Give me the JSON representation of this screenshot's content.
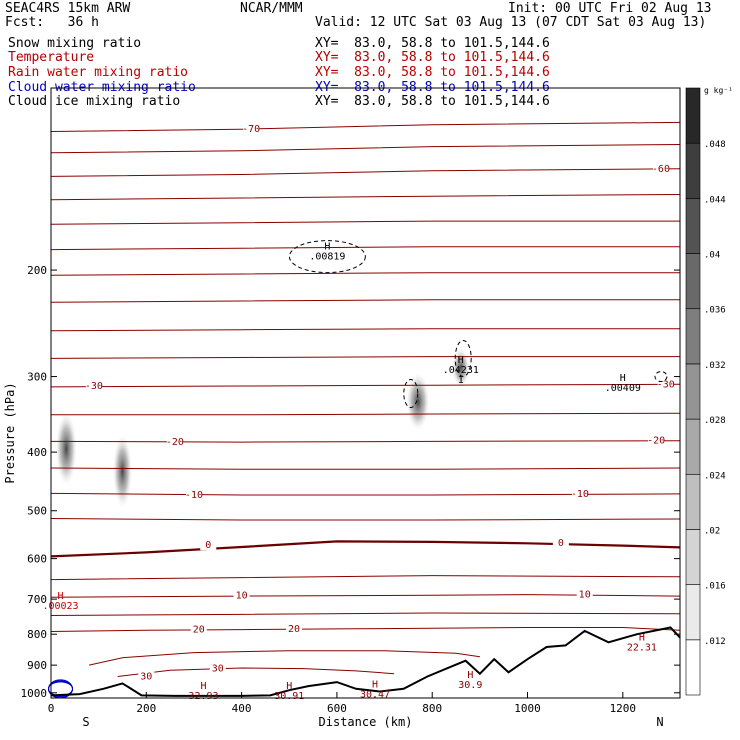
{
  "header": {
    "title_left": "SEAC4RS 15km ARW",
    "title_center": "NCAR/MMM",
    "init": "Init: 00 UTC Fri 02 Aug 13",
    "fcst": "Fcst:   36 h",
    "valid": "Valid: 12 UTC Sat 03 Aug 13 (07 CDT Sat 03 Aug 13)"
  },
  "fields": [
    {
      "name": "Snow mixing ratio",
      "xy": "XY=  83.0, 58.8 to 101.5,144.6",
      "color": "#000000"
    },
    {
      "name": "Temperature",
      "xy": "XY=  83.0, 58.8 to 101.5,144.6",
      "color": "#b00000"
    },
    {
      "name": "Rain water mixing ratio",
      "xy": "XY=  83.0, 58.8 to 101.5,144.6",
      "color": "#c00000"
    },
    {
      "name": "Cloud water mixing ratio",
      "xy": "XY=  83.0, 58.8 to 101.5,144.6",
      "color": "#0000c8"
    },
    {
      "name": "Cloud ice mixing ratio",
      "xy": "XY=  83.0, 58.8 to 101.5,144.6",
      "color": "#000000"
    }
  ],
  "chart_data": {
    "type": "cross-section",
    "xlabel": "Distance (km)",
    "ylabel": "Pressure (hPa)",
    "xlim": [
      0,
      1320
    ],
    "ylim": [
      1020,
      100
    ],
    "y_scale": "log",
    "x_ticks": [
      0,
      200,
      400,
      600,
      800,
      1000,
      1200
    ],
    "y_ticks": [
      200,
      300,
      400,
      500,
      600,
      700,
      800,
      900,
      1000
    ],
    "x_endpoints": {
      "left": "S",
      "right": "N"
    },
    "temperature_labels_degC": [
      -70,
      -60,
      -30,
      -30,
      -20,
      -20,
      -10,
      -10,
      0,
      0,
      10,
      10,
      20,
      20,
      30,
      30
    ],
    "temperature_isotherms": [
      {
        "label": "-70",
        "points": [
          [
            0,
            118
          ],
          [
            400,
            117
          ],
          [
            800,
            115
          ],
          [
            1320,
            114
          ]
        ]
      },
      {
        "label": "",
        "points": [
          [
            0,
            128
          ],
          [
            400,
            127
          ],
          [
            800,
            125
          ],
          [
            1320,
            124
          ]
        ]
      },
      {
        "label": "-60",
        "points": [
          [
            0,
            140
          ],
          [
            400,
            139
          ],
          [
            800,
            137
          ],
          [
            1320,
            136
          ]
        ]
      },
      {
        "label": "",
        "points": [
          [
            0,
            153
          ],
          [
            400,
            152
          ],
          [
            800,
            151
          ],
          [
            1320,
            150
          ]
        ]
      },
      {
        "label": "",
        "points": [
          [
            0,
            168
          ],
          [
            400,
            167
          ],
          [
            800,
            166
          ],
          [
            1320,
            166
          ]
        ]
      },
      {
        "label": "",
        "points": [
          [
            0,
            185
          ],
          [
            400,
            184
          ],
          [
            800,
            183
          ],
          [
            1320,
            183
          ]
        ]
      },
      {
        "label": "",
        "points": [
          [
            0,
            204
          ],
          [
            400,
            203
          ],
          [
            800,
            202
          ],
          [
            1320,
            202
          ]
        ]
      },
      {
        "label": "",
        "points": [
          [
            0,
            226
          ],
          [
            400,
            225
          ],
          [
            800,
            224
          ],
          [
            1320,
            224
          ]
        ]
      },
      {
        "label": "",
        "points": [
          [
            0,
            252
          ],
          [
            400,
            251
          ],
          [
            800,
            250
          ],
          [
            1320,
            250
          ]
        ]
      },
      {
        "label": "",
        "points": [
          [
            0,
            280
          ],
          [
            400,
            279
          ],
          [
            800,
            278
          ],
          [
            1320,
            278
          ]
        ]
      },
      {
        "label": "-30",
        "points": [
          [
            0,
            312
          ],
          [
            400,
            311
          ],
          [
            800,
            310
          ],
          [
            1320,
            309
          ]
        ]
      },
      {
        "label": "",
        "points": [
          [
            0,
            347
          ],
          [
            400,
            347
          ],
          [
            800,
            346
          ],
          [
            1320,
            345
          ]
        ]
      },
      {
        "label": "-20",
        "points": [
          [
            0,
            384
          ],
          [
            400,
            385
          ],
          [
            800,
            384
          ],
          [
            1320,
            383
          ]
        ]
      },
      {
        "label": "",
        "points": [
          [
            0,
            425
          ],
          [
            400,
            427
          ],
          [
            800,
            427
          ],
          [
            1320,
            425
          ]
        ]
      },
      {
        "label": "-10",
        "points": [
          [
            0,
            468
          ],
          [
            400,
            471
          ],
          [
            800,
            471
          ],
          [
            1320,
            469
          ]
        ]
      },
      {
        "label": "",
        "points": [
          [
            0,
            515
          ],
          [
            400,
            518
          ],
          [
            800,
            518
          ],
          [
            1320,
            516
          ]
        ]
      },
      {
        "label": "0",
        "points": [
          [
            0,
            595
          ],
          [
            200,
            586
          ],
          [
            400,
            574
          ],
          [
            600,
            562
          ],
          [
            800,
            563
          ],
          [
            1000,
            566
          ],
          [
            1200,
            571
          ],
          [
            1320,
            575
          ]
        ]
      },
      {
        "label": "",
        "points": [
          [
            0,
            650
          ],
          [
            400,
            645
          ],
          [
            800,
            640
          ],
          [
            1320,
            643
          ]
        ]
      },
      {
        "label": "10",
        "points": [
          [
            0,
            695
          ],
          [
            400,
            692
          ],
          [
            800,
            690
          ],
          [
            1000,
            688
          ],
          [
            1320,
            692
          ]
        ]
      },
      {
        "label": "",
        "points": [
          [
            0,
            745
          ],
          [
            400,
            742
          ],
          [
            800,
            738
          ],
          [
            1320,
            740
          ]
        ]
      },
      {
        "label": "20",
        "points": [
          [
            0,
            792
          ],
          [
            200,
            788
          ],
          [
            400,
            786
          ],
          [
            600,
            784
          ],
          [
            800,
            782
          ],
          [
            1000,
            780
          ],
          [
            1200,
            780
          ],
          [
            1320,
            788
          ]
        ]
      },
      {
        "label": "",
        "points": [
          [
            80,
            900
          ],
          [
            150,
            875
          ],
          [
            300,
            858
          ],
          [
            500,
            852
          ],
          [
            700,
            852
          ],
          [
            850,
            860
          ],
          [
            900,
            872
          ]
        ]
      },
      {
        "label": "30",
        "points": [
          [
            140,
            940
          ],
          [
            250,
            918
          ],
          [
            400,
            910
          ],
          [
            530,
            912
          ],
          [
            640,
            920
          ],
          [
            720,
            930
          ]
        ]
      }
    ],
    "terrain_hPa": [
      [
        0,
        1010
      ],
      [
        60,
        1005
      ],
      [
        110,
        985
      ],
      [
        150,
        965
      ],
      [
        190,
        1010
      ],
      [
        260,
        1012
      ],
      [
        400,
        1012
      ],
      [
        460,
        1010
      ],
      [
        500,
        990
      ],
      [
        540,
        975
      ],
      [
        600,
        960
      ],
      [
        640,
        985
      ],
      [
        690,
        995
      ],
      [
        740,
        985
      ],
      [
        790,
        940
      ],
      [
        840,
        905
      ],
      [
        870,
        885
      ],
      [
        900,
        930
      ],
      [
        930,
        880
      ],
      [
        960,
        925
      ],
      [
        1000,
        880
      ],
      [
        1040,
        840
      ],
      [
        1080,
        835
      ],
      [
        1120,
        790
      ],
      [
        1170,
        825
      ],
      [
        1230,
        800
      ],
      [
        1300,
        780
      ],
      [
        1320,
        810
      ]
    ],
    "snow_mixing_ratio_maxima": [
      {
        "label": "H\n.00819",
        "x": 580,
        "p": 185
      },
      {
        "label": "H\n.04231\n1",
        "x": 860,
        "p": 285
      },
      {
        "label": "H\n.00409",
        "x": 1200,
        "p": 305
      }
    ],
    "temperature_maxima_degC": [
      {
        "label": "H\n32.93",
        "x": 320,
        "p": 985
      },
      {
        "label": "H\n30.91",
        "x": 500,
        "p": 985
      },
      {
        "label": "H\n30.47",
        "x": 680,
        "p": 980
      },
      {
        "label": "H\n30.9",
        "x": 880,
        "p": 945
      },
      {
        "label": "H\n22.31",
        "x": 1240,
        "p": 820
      }
    ],
    "rain_mixing_ratio_maxima": [
      {
        "label": "H\n.00023",
        "x": 20,
        "p": 700
      }
    ],
    "colorbar": {
      "unit": "g kg⁻¹",
      "tick_labels": [
        ".012",
        ".016",
        ".02",
        ".024",
        ".028",
        ".032",
        ".036",
        ".04",
        ".044",
        ".048"
      ]
    }
  }
}
